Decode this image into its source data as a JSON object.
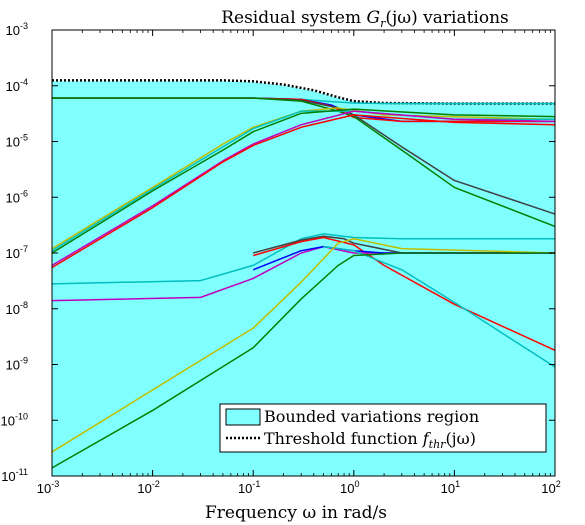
{
  "chart_data": {
    "type": "line",
    "title": "Residual system G_r(jω) variations",
    "title_parts": {
      "pre": "Residual system ",
      "sym": "G",
      "sub": "r",
      "post": "(jω) variations"
    },
    "xlabel": "Frequency ω in rad/s",
    "x_scale": "log",
    "y_scale": "log",
    "xlim": [
      0.001,
      100
    ],
    "ylim": [
      1e-11,
      0.001
    ],
    "x_ticks": [
      {
        "value": 0.001,
        "base": "10",
        "exp": "-3"
      },
      {
        "value": 0.01,
        "base": "10",
        "exp": "-2"
      },
      {
        "value": 0.1,
        "base": "10",
        "exp": "-1"
      },
      {
        "value": 1,
        "base": "10",
        "exp": "0"
      },
      {
        "value": 10,
        "base": "10",
        "exp": "1"
      },
      {
        "value": 100,
        "base": "10",
        "exp": "2"
      }
    ],
    "y_ticks": [
      {
        "value": 1e-11,
        "base": "10",
        "exp": "-11"
      },
      {
        "value": 1e-10,
        "base": "10",
        "exp": "-10"
      },
      {
        "value": 1e-09,
        "base": "10",
        "exp": "-9"
      },
      {
        "value": 1e-08,
        "base": "10",
        "exp": "-8"
      },
      {
        "value": 1e-07,
        "base": "10",
        "exp": "-7"
      },
      {
        "value": 1e-06,
        "base": "10",
        "exp": "-6"
      },
      {
        "value": 1e-05,
        "base": "10",
        "exp": "-5"
      },
      {
        "value": 0.0001,
        "base": "10",
        "exp": "-4"
      },
      {
        "value": 0.001,
        "base": "10",
        "exp": "-3"
      }
    ],
    "grid": false,
    "legend_placement": "bottom-right",
    "legend": [
      {
        "label": "Bounded variations region",
        "style": "fill",
        "color": "#80ffff"
      },
      {
        "label": "Threshold function f_thr(jω)",
        "label_pre": "Threshold function ",
        "label_sym": "f",
        "label_sub": "thr",
        "label_post": "(jω)",
        "style": "dotted",
        "color": "#000000"
      }
    ],
    "region": {
      "color": "#80ffff",
      "upper": [
        [
          0.001,
          0.00012
        ],
        [
          0.05,
          0.00012
        ],
        [
          0.1,
          0.000115
        ],
        [
          0.2,
          0.0001
        ],
        [
          0.4,
          8e-05
        ],
        [
          0.7,
          6e-05
        ],
        [
          1.0,
          5.2e-05
        ],
        [
          2.0,
          4.8e-05
        ],
        [
          10,
          4.7e-05
        ],
        [
          100,
          4.7e-05
        ]
      ],
      "lower": [
        [
          0.001,
          1e-11
        ],
        [
          100,
          1e-11
        ]
      ]
    },
    "series": [
      {
        "color": "#000000",
        "dashed": true,
        "points": [
          [
            0.001,
            0.000125
          ],
          [
            0.05,
            0.000125
          ],
          [
            0.1,
            0.00012
          ],
          [
            0.2,
            0.000105
          ],
          [
            0.4,
            8.3e-05
          ],
          [
            0.7,
            6.2e-05
          ],
          [
            1.0,
            5.3e-05
          ],
          [
            2.0,
            4.9e-05
          ],
          [
            10,
            4.8e-05
          ],
          [
            100,
            4.8e-05
          ]
        ]
      },
      {
        "color": "#00bfbf",
        "points": [
          [
            0.001,
            6e-05
          ],
          [
            0.1,
            6e-05
          ],
          [
            0.3,
            5.7e-05
          ],
          [
            0.6,
            5.2e-05
          ],
          [
            1.0,
            4.9e-05
          ],
          [
            2.0,
            4.8e-05
          ],
          [
            100,
            4.8e-05
          ]
        ]
      },
      {
        "color": "#0000ff",
        "points": [
          [
            0.001,
            6e-05
          ],
          [
            0.1,
            6e-05
          ],
          [
            0.3,
            5.7e-05
          ],
          [
            0.6,
            4.5e-05
          ],
          [
            1.0,
            3e-05
          ],
          [
            3.0,
            2.3e-05
          ],
          [
            100,
            2.3e-05
          ]
        ]
      },
      {
        "color": "#ff0000",
        "points": [
          [
            0.001,
            6e-05
          ],
          [
            0.1,
            6e-05
          ],
          [
            0.3,
            5.7e-05
          ],
          [
            0.6,
            4.3e-05
          ],
          [
            1.0,
            2.7e-05
          ],
          [
            3.0,
            2.3e-05
          ],
          [
            100,
            2.3e-05
          ]
        ]
      },
      {
        "color": "#404040",
        "points": [
          [
            0.001,
            6e-05
          ],
          [
            0.1,
            6e-05
          ],
          [
            0.3,
            5.5e-05
          ],
          [
            0.7,
            4e-05
          ],
          [
            1.0,
            3e-05
          ],
          [
            3.0,
            8e-06
          ],
          [
            10,
            2e-06
          ],
          [
            100,
            5e-07
          ]
        ]
      },
      {
        "color": "#008000",
        "points": [
          [
            0.001,
            6e-05
          ],
          [
            0.1,
            6e-05
          ],
          [
            0.3,
            5.3e-05
          ],
          [
            0.7,
            3.5e-05
          ],
          [
            1.0,
            2.8e-05
          ],
          [
            3.0,
            7e-06
          ],
          [
            10,
            1.5e-06
          ],
          [
            100,
            3e-07
          ]
        ]
      },
      {
        "color": "#bfbf00",
        "points": [
          [
            0.001,
            1.2e-07
          ],
          [
            0.01,
            1.5e-06
          ],
          [
            0.05,
            9e-06
          ],
          [
            0.1,
            1.8e-05
          ],
          [
            0.3,
            3.5e-05
          ],
          [
            0.7,
            4e-05
          ],
          [
            2.0,
            3e-05
          ],
          [
            100,
            2.5e-05
          ]
        ]
      },
      {
        "color": "#00bfbf",
        "points": [
          [
            0.001,
            1.1e-07
          ],
          [
            0.01,
            1.4e-06
          ],
          [
            0.05,
            8e-06
          ],
          [
            0.1,
            1.7e-05
          ],
          [
            0.3,
            3.5e-05
          ],
          [
            1.0,
            3.5e-05
          ],
          [
            10,
            2.5e-05
          ],
          [
            100,
            2.5e-05
          ]
        ]
      },
      {
        "color": "#008000",
        "points": [
          [
            0.001,
            1e-07
          ],
          [
            0.01,
            1.3e-06
          ],
          [
            0.05,
            7e-06
          ],
          [
            0.1,
            1.5e-05
          ],
          [
            0.3,
            3.2e-05
          ],
          [
            1.0,
            3.8e-05
          ],
          [
            10,
            3e-05
          ],
          [
            100,
            2.8e-05
          ]
        ]
      },
      {
        "color": "#bf00bf",
        "points": [
          [
            0.001,
            6e-08
          ],
          [
            0.01,
            7e-07
          ],
          [
            0.05,
            4.5e-06
          ],
          [
            0.1,
            9e-06
          ],
          [
            0.3,
            2e-05
          ],
          [
            1.0,
            3.5e-05
          ],
          [
            10,
            2.5e-05
          ],
          [
            100,
            2.3e-05
          ]
        ]
      },
      {
        "color": "#ff0000",
        "points": [
          [
            0.001,
            5.5e-08
          ],
          [
            0.01,
            6.5e-07
          ],
          [
            0.05,
            4.3e-06
          ],
          [
            0.1,
            8.5e-06
          ],
          [
            0.3,
            1.8e-05
          ],
          [
            1.0,
            3e-05
          ],
          [
            10,
            2.2e-05
          ],
          [
            100,
            2e-05
          ]
        ]
      },
      {
        "color": "#00bfbf",
        "points": [
          [
            0.001,
            2.8e-08
          ],
          [
            0.03,
            3.2e-08
          ],
          [
            0.1,
            6e-08
          ],
          [
            0.3,
            1.8e-07
          ],
          [
            0.5,
            2.2e-07
          ],
          [
            1.0,
            1.9e-07
          ],
          [
            3.0,
            1.8e-07
          ],
          [
            100,
            1.8e-07
          ]
        ]
      },
      {
        "color": "#404040",
        "points": [
          [
            0.1,
            1e-07
          ],
          [
            0.3,
            1.7e-07
          ],
          [
            0.5,
            2e-07
          ],
          [
            0.8,
            1.8e-07
          ],
          [
            1.0,
            1.5e-07
          ],
          [
            3.0,
            1e-07
          ],
          [
            100,
            1e-07
          ]
        ]
      },
      {
        "color": "#ff0000",
        "points": [
          [
            0.1,
            9e-08
          ],
          [
            0.3,
            1.6e-07
          ],
          [
            0.5,
            1.9e-07
          ],
          [
            1.0,
            1.4e-07
          ],
          [
            2.0,
            6e-08
          ],
          [
            10,
            1.2e-08
          ],
          [
            100,
            1.8e-09
          ]
        ]
      },
      {
        "color": "#bf00bf",
        "points": [
          [
            0.001,
            1.4e-08
          ],
          [
            0.03,
            1.6e-08
          ],
          [
            0.1,
            3.5e-08
          ],
          [
            0.3,
            1e-07
          ],
          [
            0.5,
            1.3e-07
          ],
          [
            1.0,
            1e-07
          ],
          [
            3.0,
            1e-07
          ],
          [
            100,
            1e-07
          ]
        ]
      },
      {
        "color": "#0000ff",
        "points": [
          [
            0.1,
            5e-08
          ],
          [
            0.3,
            1.1e-07
          ],
          [
            0.5,
            1.3e-07
          ],
          [
            1.0,
            1.1e-07
          ],
          [
            2.0,
            1e-07
          ],
          [
            100,
            1e-07
          ]
        ]
      },
      {
        "color": "#00bfbf",
        "points": [
          [
            0.5,
            1.3e-07
          ],
          [
            1.0,
            1.1e-07
          ],
          [
            3.0,
            5e-08
          ],
          [
            10,
            1.3e-08
          ],
          [
            100,
            9e-10
          ]
        ]
      },
      {
        "color": "#bfbf00",
        "points": [
          [
            0.001,
            2.7e-11
          ],
          [
            0.01,
            3.5e-10
          ],
          [
            0.1,
            4.5e-09
          ],
          [
            0.3,
            3e-08
          ],
          [
            0.7,
            1.5e-07
          ],
          [
            1.0,
            1.8e-07
          ],
          [
            3.0,
            1.2e-07
          ],
          [
            100,
            1e-07
          ]
        ]
      },
      {
        "color": "#008000",
        "points": [
          [
            0.001,
            1.4e-11
          ],
          [
            0.01,
            1.5e-10
          ],
          [
            0.1,
            2e-09
          ],
          [
            0.3,
            1.5e-08
          ],
          [
            0.7,
            6e-08
          ],
          [
            1.0,
            9e-08
          ],
          [
            3.0,
            1e-07
          ],
          [
            100,
            1e-07
          ]
        ]
      }
    ]
  }
}
